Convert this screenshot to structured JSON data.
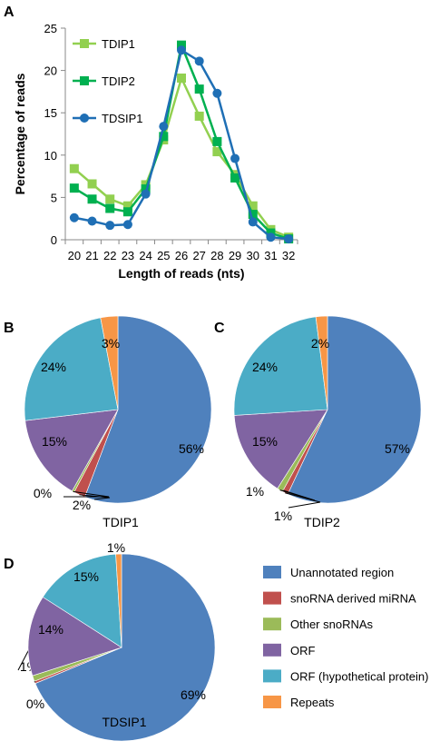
{
  "colors": {
    "TDIP1": "#92d050",
    "TDIP2": "#00b050",
    "TDSIP1": "#1f6fb5",
    "Unannotated region": "#4f81bd",
    "snoRNA derived miRNA": "#c0504d",
    "Other snoRNAs": "#9bbb59",
    "ORF": "#8064a2",
    "ORF (hypothetical protein)": "#4bacc6",
    "Repeats": "#f79646"
  },
  "chart_data": [
    {
      "panel": "A",
      "type": "line",
      "xlabel": "Length of reads (nts)",
      "ylabel": "Percentage of reads",
      "x": [
        20,
        21,
        22,
        23,
        24,
        25,
        26,
        27,
        28,
        29,
        30,
        31,
        32
      ],
      "ylim": [
        0,
        25
      ],
      "yticks": [
        0,
        5,
        10,
        15,
        20,
        25
      ],
      "legend_position": "top-left",
      "series": [
        {
          "name": "TDIP1",
          "marker": "square",
          "values": [
            8.4,
            6.6,
            4.8,
            4.0,
            6.5,
            11.8,
            19.1,
            14.6,
            10.4,
            7.7,
            4.0,
            1.2,
            0.3
          ]
        },
        {
          "name": "TDIP2",
          "marker": "square",
          "values": [
            6.1,
            4.8,
            3.7,
            3.3,
            6.0,
            12.2,
            23.0,
            17.8,
            11.6,
            7.3,
            3.0,
            0.8,
            0.1
          ]
        },
        {
          "name": "TDSIP1",
          "marker": "circle",
          "values": [
            2.6,
            2.2,
            1.7,
            1.8,
            5.4,
            13.4,
            22.4,
            21.1,
            17.3,
            9.6,
            2.1,
            0.3,
            0.1
          ]
        }
      ]
    },
    {
      "panel": "B",
      "type": "pie",
      "title": "TDIP1",
      "categories": [
        "Unannotated region",
        "snoRNA derived miRNA",
        "Other snoRNAs",
        "ORF",
        "ORF (hypothetical protein)",
        "Repeats"
      ],
      "values": [
        56,
        2,
        0.4,
        15,
        24,
        3
      ],
      "labels": [
        "56%",
        "2%",
        "0%",
        "15%",
        "24%",
        "3%"
      ]
    },
    {
      "panel": "C",
      "type": "pie",
      "title": "TDIP2",
      "categories": [
        "Unannotated region",
        "snoRNA derived miRNA",
        "Other snoRNAs",
        "ORF",
        "ORF (hypothetical protein)",
        "Repeats"
      ],
      "values": [
        57,
        1,
        1,
        15,
        24,
        2
      ],
      "labels": [
        "57%",
        "1%",
        "1%",
        "15%",
        "24%",
        "2%"
      ]
    },
    {
      "panel": "D",
      "type": "pie",
      "title": "TDSIP1",
      "categories": [
        "Unannotated region",
        "snoRNA derived miRNA",
        "Other snoRNAs",
        "ORF",
        "ORF (hypothetical protein)",
        "Repeats"
      ],
      "values": [
        69,
        0.4,
        1,
        14,
        15,
        1
      ],
      "labels": [
        "69%",
        "0%",
        "1%",
        "14%",
        "15%",
        "1%"
      ]
    }
  ],
  "pie_legend": {
    "position": "right",
    "entries": [
      "Unannotated region",
      "snoRNA derived miRNA",
      "Other snoRNAs",
      "ORF",
      "ORF (hypothetical protein)",
      "Repeats"
    ]
  }
}
